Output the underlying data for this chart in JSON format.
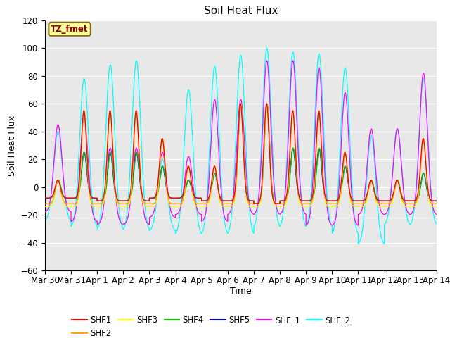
{
  "title": "Soil Heat Flux",
  "xlabel": "Time",
  "ylabel": "Soil Heat Flux",
  "annotation_text": "TZ_fmet",
  "annotation_bg": "#FFFF99",
  "annotation_border": "#8B6914",
  "ylim": [
    -60,
    120
  ],
  "yticks": [
    -60,
    -40,
    -20,
    0,
    20,
    40,
    60,
    80,
    100,
    120
  ],
  "n_days": 15,
  "xtick_labels": [
    "Mar 30",
    "Mar 31",
    "Apr 1",
    "Apr 2",
    "Apr 3",
    "Apr 4",
    "Apr 5",
    "Apr 6",
    "Apr 7",
    "Apr 8",
    "Apr 9",
    "Apr 10",
    "Apr 11",
    "Apr 12",
    "Apr 13",
    "Apr 14"
  ],
  "series_order": [
    "SHF_2",
    "SHF_1",
    "SHF1",
    "SHF2",
    "SHF3",
    "SHF4",
    "SHF5"
  ],
  "series": {
    "SHF1": {
      "color": "#FF0000",
      "lw": 1.0
    },
    "SHF2": {
      "color": "#FFA500",
      "lw": 1.0
    },
    "SHF3": {
      "color": "#FFFF00",
      "lw": 1.0
    },
    "SHF4": {
      "color": "#00CC00",
      "lw": 1.0
    },
    "SHF5": {
      "color": "#0000CC",
      "lw": 1.0
    },
    "SHF_1": {
      "color": "#FF00FF",
      "lw": 1.0
    },
    "SHF_2": {
      "color": "#00FFFF",
      "lw": 1.0
    }
  },
  "plot_bg_color": "#E8E8E8",
  "fig_bg_color": "#FFFFFF",
  "grid_color": "#FFFFFF",
  "peak_shf5": [
    5,
    25,
    25,
    25,
    15,
    5,
    10,
    60,
    60,
    28,
    28,
    15,
    5,
    5,
    10
  ],
  "peak_shf4": [
    5,
    25,
    25,
    25,
    15,
    5,
    10,
    60,
    60,
    28,
    28,
    15,
    5,
    5,
    10
  ],
  "peak_shf1": [
    5,
    55,
    55,
    55,
    35,
    15,
    15,
    60,
    60,
    55,
    55,
    25,
    5,
    5,
    35
  ],
  "peak_shf2": [
    5,
    55,
    55,
    55,
    35,
    15,
    15,
    60,
    60,
    55,
    55,
    25,
    5,
    5,
    35
  ],
  "peak_shf3": [
    5,
    55,
    55,
    55,
    35,
    15,
    15,
    60,
    60,
    55,
    55,
    25,
    5,
    5,
    35
  ],
  "peak_shf_1": [
    45,
    50,
    28,
    28,
    25,
    22,
    63,
    63,
    91,
    91,
    86,
    68,
    42,
    42,
    82
  ],
  "peak_shf_2": [
    40,
    78,
    88,
    91,
    20,
    70,
    87,
    95,
    100,
    97,
    96,
    86,
    37,
    42,
    78
  ],
  "night_base": [
    -8,
    -8,
    -10,
    -10,
    -8,
    -8,
    -10,
    -10,
    -12,
    -10,
    -10,
    -10,
    -10,
    -10,
    -10
  ],
  "night_shf_1": [
    -18,
    -25,
    -27,
    -27,
    -22,
    -20,
    -25,
    -20,
    -20,
    -20,
    -28,
    -28,
    -20,
    -20,
    -20
  ],
  "night_shf_2": [
    -25,
    -30,
    -32,
    -32,
    -32,
    -35,
    -35,
    -35,
    -30,
    -30,
    -30,
    -35,
    -42,
    -28,
    -28
  ],
  "n_per_day": 288
}
